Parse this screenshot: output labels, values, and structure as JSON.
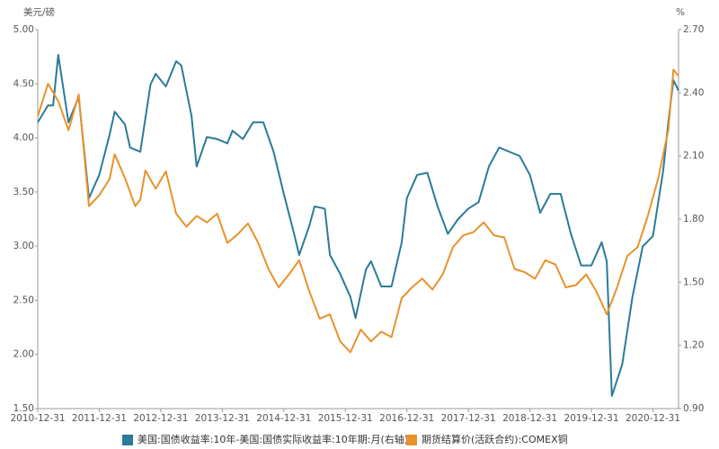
{
  "chart_data": {
    "type": "line",
    "y_unit": "美元/磅",
    "y2_unit": "%",
    "xlim": [
      "2010-12-31",
      "2021-05-31"
    ],
    "xticks": [
      "2010-12-31",
      "2011-12-31",
      "2012-12-31",
      "2013-12-31",
      "2014-12-31",
      "2015-12-31",
      "2016-12-31",
      "2017-12-31",
      "2018-12-31",
      "2019-12-31",
      "2020-12-31"
    ],
    "ylim": [
      1.5,
      5.0
    ],
    "yticks": [
      {
        "value": 1.5,
        "label": "1.50"
      },
      {
        "value": 2.0,
        "label": "2.00"
      },
      {
        "value": 2.5,
        "label": "2.50"
      },
      {
        "value": 3.0,
        "label": "3.00"
      },
      {
        "value": 3.5,
        "label": "3.50"
      },
      {
        "value": 4.0,
        "label": "4.00"
      },
      {
        "value": 4.5,
        "label": "4.50"
      },
      {
        "value": 5.0,
        "label": "5.00"
      }
    ],
    "y2lim": [
      0.9,
      2.7
    ],
    "y2ticks": [
      {
        "value": 0.9,
        "label": "0.90"
      },
      {
        "value": 1.2,
        "label": "1.20"
      },
      {
        "value": 1.5,
        "label": "1.50"
      },
      {
        "value": 1.8,
        "label": "1.80"
      },
      {
        "value": 2.1,
        "label": "2.10"
      },
      {
        "value": 2.4,
        "label": "2.40"
      },
      {
        "value": 2.7,
        "label": "2.70"
      }
    ],
    "grid": false,
    "series": [
      {
        "name": "美国:国债收益率:10年-美国:国债实际收益率:10年期:月(右轴)",
        "color": "#2b7b99",
        "axis": "y2",
        "x": [
          "2010-12",
          "2011-02",
          "2011-03",
          "2011-04",
          "2011-06",
          "2011-08",
          "2011-10",
          "2011-12",
          "2012-02",
          "2012-03",
          "2012-05",
          "2012-06",
          "2012-08",
          "2012-10",
          "2012-11",
          "2013-01",
          "2013-03",
          "2013-04",
          "2013-06",
          "2013-07",
          "2013-09",
          "2013-11",
          "2014-01",
          "2014-02",
          "2014-04",
          "2014-06",
          "2014-08",
          "2014-10",
          "2014-12",
          "2015-02",
          "2015-03",
          "2015-05",
          "2015-06",
          "2015-08",
          "2015-09",
          "2015-11",
          "2016-01",
          "2016-02",
          "2016-04",
          "2016-05",
          "2016-07",
          "2016-09",
          "2016-11",
          "2016-12",
          "2017-02",
          "2017-04",
          "2017-06",
          "2017-08",
          "2017-10",
          "2017-12",
          "2018-02",
          "2018-04",
          "2018-06",
          "2018-08",
          "2018-10",
          "2018-12",
          "2019-02",
          "2019-04",
          "2019-06",
          "2019-08",
          "2019-10",
          "2019-12",
          "2020-02",
          "2020-03",
          "2020-04",
          "2020-06",
          "2020-08",
          "2020-10",
          "2020-12",
          "2021-02",
          "2021-03",
          "2021-04",
          "2021-05"
        ],
        "values": [
          2.26,
          2.34,
          2.34,
          2.58,
          2.26,
          2.38,
          1.9,
          2.01,
          2.2,
          2.31,
          2.25,
          2.14,
          2.12,
          2.44,
          2.49,
          2.43,
          2.55,
          2.53,
          2.29,
          2.05,
          2.19,
          2.18,
          2.16,
          2.22,
          2.18,
          2.26,
          2.26,
          2.12,
          1.92,
          1.73,
          1.63,
          1.77,
          1.86,
          1.85,
          1.63,
          1.54,
          1.43,
          1.33,
          1.56,
          1.6,
          1.48,
          1.48,
          1.69,
          1.9,
          2.01,
          2.02,
          1.86,
          1.73,
          1.8,
          1.85,
          1.88,
          2.05,
          2.14,
          2.12,
          2.1,
          2.01,
          1.83,
          1.92,
          1.92,
          1.73,
          1.58,
          1.58,
          1.69,
          1.6,
          0.96,
          1.11,
          1.43,
          1.67,
          1.72,
          2.03,
          2.26,
          2.46,
          2.41
        ]
      },
      {
        "name": "期货结算价(活跃合约):COMEX铜",
        "color": "#e8922c",
        "axis": "y",
        "x": [
          "2010-12",
          "2011-02",
          "2011-04",
          "2011-06",
          "2011-08",
          "2011-10",
          "2011-12",
          "2012-02",
          "2012-03",
          "2012-05",
          "2012-07",
          "2012-08",
          "2012-09",
          "2012-11",
          "2013-01",
          "2013-03",
          "2013-05",
          "2013-07",
          "2013-09",
          "2013-11",
          "2014-01",
          "2014-03",
          "2014-05",
          "2014-07",
          "2014-09",
          "2014-11",
          "2015-01",
          "2015-03",
          "2015-05",
          "2015-07",
          "2015-09",
          "2015-11",
          "2016-01",
          "2016-03",
          "2016-05",
          "2016-07",
          "2016-09",
          "2016-11",
          "2017-01",
          "2017-03",
          "2017-05",
          "2017-07",
          "2017-09",
          "2017-11",
          "2018-01",
          "2018-03",
          "2018-05",
          "2018-07",
          "2018-09",
          "2018-11",
          "2019-01",
          "2019-03",
          "2019-05",
          "2019-07",
          "2019-09",
          "2019-11",
          "2020-01",
          "2020-03",
          "2020-05",
          "2020-07",
          "2020-09",
          "2020-11",
          "2021-01",
          "2021-03",
          "2021-04",
          "2021-05"
        ],
        "values": [
          4.2,
          4.5,
          4.34,
          4.07,
          4.4,
          3.37,
          3.47,
          3.62,
          3.85,
          3.63,
          3.37,
          3.43,
          3.7,
          3.53,
          3.69,
          3.3,
          3.18,
          3.28,
          3.22,
          3.3,
          3.03,
          3.11,
          3.21,
          3.03,
          2.79,
          2.62,
          2.74,
          2.87,
          2.58,
          2.33,
          2.37,
          2.12,
          2.02,
          2.23,
          2.12,
          2.21,
          2.16,
          2.52,
          2.62,
          2.7,
          2.6,
          2.74,
          2.99,
          3.1,
          3.13,
          3.22,
          3.1,
          3.08,
          2.79,
          2.76,
          2.7,
          2.87,
          2.83,
          2.62,
          2.64,
          2.74,
          2.58,
          2.37,
          2.62,
          2.91,
          2.99,
          3.28,
          3.62,
          4.07,
          4.63,
          4.57
        ]
      }
    ]
  }
}
